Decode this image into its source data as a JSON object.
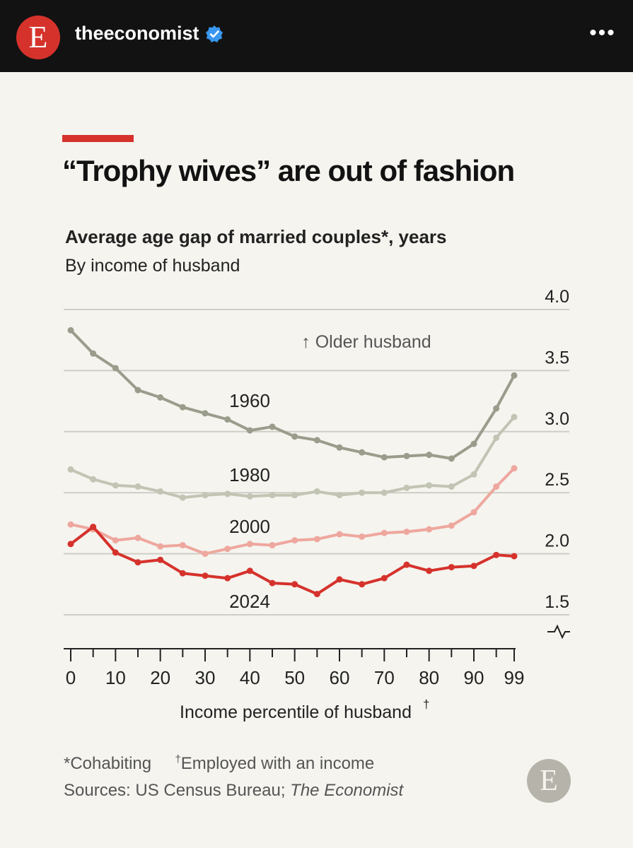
{
  "header": {
    "logo_letter": "E",
    "handle": "theeconomist",
    "more_icon": "•••",
    "brand_color": "#d6322c"
  },
  "chart_data": {
    "type": "line",
    "title": "“Trophy wives” are out of fashion",
    "subtitle": "Average age gap of married couples*, years",
    "subsubtitle": "By income of husband",
    "xlabel": "Income percentile of husband",
    "xlabel_dagger": "†",
    "ylabel": "",
    "ylim": [
      1.5,
      4.0
    ],
    "yticks": [
      1.5,
      2.0,
      2.5,
      3.0,
      3.5,
      4.0
    ],
    "ytick_labels": [
      "1.5",
      "2.0",
      "2.5",
      "3.0",
      "3.5",
      "4.0"
    ],
    "xticks": [
      0,
      10,
      20,
      30,
      40,
      50,
      60,
      70,
      80,
      90,
      99
    ],
    "xtick_labels": [
      "0",
      "10",
      "20",
      "30",
      "40",
      "50",
      "60",
      "70",
      "80",
      "90",
      "99"
    ],
    "grid": true,
    "axis_break": true,
    "annotation": "↑ Older husband",
    "x": [
      0,
      5,
      10,
      15,
      20,
      25,
      30,
      35,
      40,
      45,
      50,
      55,
      60,
      65,
      70,
      75,
      80,
      85,
      90,
      95,
      99
    ],
    "series": [
      {
        "name": "1960",
        "color": "#9a9c8c",
        "values": [
          3.83,
          3.64,
          3.52,
          3.34,
          3.28,
          3.2,
          3.15,
          3.1,
          3.01,
          3.04,
          2.96,
          2.93,
          2.87,
          2.83,
          2.79,
          2.8,
          2.81,
          2.78,
          2.9,
          3.19,
          3.46
        ]
      },
      {
        "name": "1980",
        "color": "#c2c4b4",
        "values": [
          2.69,
          2.61,
          2.56,
          2.55,
          2.51,
          2.46,
          2.48,
          2.49,
          2.47,
          2.48,
          2.48,
          2.51,
          2.48,
          2.5,
          2.5,
          2.54,
          2.56,
          2.55,
          2.65,
          2.95,
          3.12
        ]
      },
      {
        "name": "2000",
        "color": "#eea79e",
        "values": [
          2.24,
          2.2,
          2.11,
          2.13,
          2.06,
          2.07,
          2.0,
          2.04,
          2.08,
          2.07,
          2.11,
          2.12,
          2.16,
          2.14,
          2.17,
          2.18,
          2.2,
          2.23,
          2.34,
          2.55,
          2.7
        ]
      },
      {
        "name": "2024",
        "color": "#d6322c",
        "values": [
          2.08,
          2.22,
          2.01,
          1.93,
          1.95,
          1.84,
          1.82,
          1.8,
          1.86,
          1.76,
          1.75,
          1.67,
          1.79,
          1.75,
          1.8,
          1.91,
          1.86,
          1.89,
          1.9,
          1.99,
          1.98
        ]
      }
    ]
  },
  "footer": {
    "footnote1": "*Cohabiting",
    "footnote2_mark": "†",
    "footnote2": "Employed with an income",
    "sources_prefix": "Sources: US Census Bureau; ",
    "sources_italic": "The Economist",
    "logo_letter": "E"
  }
}
